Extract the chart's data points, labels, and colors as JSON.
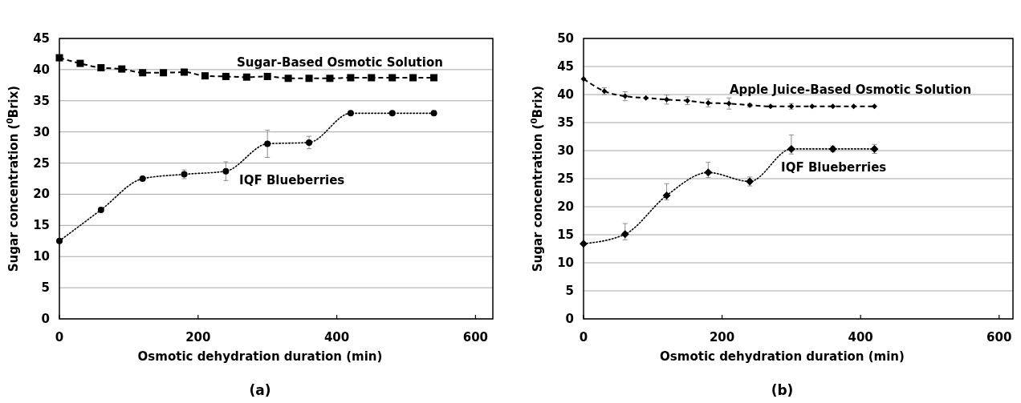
{
  "chart_data": [
    {
      "type": "line",
      "xlabel": "Osmotic dehydration duration (min)",
      "ylabel": "Sugar concentration ($^{0}$Brix)",
      "annotations": [
        "(a)"
      ],
      "xlim": [
        0,
        625
      ],
      "xticks": [
        0,
        200,
        400,
        600
      ],
      "ylim": [
        0,
        45
      ],
      "yticks": [
        0,
        5,
        10,
        15,
        20,
        25,
        30,
        35,
        40,
        45
      ],
      "grid": "y",
      "series": [
        {
          "name": "Sugar-Based Osmotic Solution",
          "color": "#000000",
          "marker": "square",
          "line_style": "dashed",
          "x": [
            0,
            30,
            60,
            90,
            120,
            150,
            180,
            210,
            240,
            270,
            300,
            330,
            360,
            390,
            420,
            450,
            480,
            510,
            540
          ],
          "values": [
            41.9,
            41.0,
            40.3,
            40.1,
            39.5,
            39.5,
            39.6,
            39.0,
            38.9,
            38.8,
            38.9,
            38.6,
            38.6,
            38.6,
            38.7,
            38.7,
            38.7,
            38.7,
            38.7
          ]
        },
        {
          "name": "IQF Blueberries",
          "color": "#000000",
          "marker": "circle",
          "line_style": "dotted",
          "x": [
            0,
            60,
            120,
            180,
            240,
            300,
            360,
            420,
            480,
            540
          ],
          "values": [
            12.5,
            17.5,
            22.5,
            23.2,
            23.7,
            28.1,
            28.3,
            33.0,
            33.0,
            33.0
          ],
          "errors": [
            null,
            null,
            null,
            0.7,
            1.5,
            2.2,
            1.0,
            null,
            null,
            null
          ]
        }
      ]
    },
    {
      "type": "line",
      "xlabel": "Osmotic dehydration duration (min)",
      "ylabel": "Sugar concentration ($^{0}$Brix)",
      "annotations": [
        "(b)"
      ],
      "xlim": [
        0,
        620
      ],
      "xticks": [
        0,
        200,
        400,
        600
      ],
      "ylim": [
        0,
        50
      ],
      "yticks": [
        0,
        5,
        10,
        15,
        20,
        25,
        30,
        35,
        40,
        45,
        50
      ],
      "grid": "y",
      "series": [
        {
          "name": "Apple Juice-Based Osmotic Solution",
          "color": "#000000",
          "marker": "diamond",
          "line_style": "dashed",
          "x": [
            0,
            30,
            60,
            90,
            120,
            150,
            180,
            210,
            240,
            270,
            300,
            330,
            360,
            390,
            420
          ],
          "values": [
            42.8,
            40.6,
            39.7,
            39.4,
            39.1,
            38.9,
            38.5,
            38.4,
            38.1,
            37.9,
            37.9,
            37.9,
            37.9,
            37.9,
            37.9
          ],
          "errors": [
            null,
            0.6,
            0.8,
            null,
            0.8,
            0.7,
            0.7,
            1.0,
            0.3,
            null,
            0.5,
            null,
            null,
            null,
            null
          ]
        },
        {
          "name": "IQF Blueberries",
          "color": "#000000",
          "marker": "diamond",
          "line_style": "dotted",
          "x": [
            0,
            60,
            120,
            180,
            240,
            300,
            360,
            420
          ],
          "values": [
            13.4,
            15.1,
            22.0,
            26.1,
            24.5,
            30.3,
            30.3,
            30.3
          ],
          "errors": [
            null,
            [
              14.1,
              17.0
            ],
            [
              21.2,
              24.1
            ],
            [
              25.2,
              27.9
            ],
            0.8,
            [
              29.4,
              32.8
            ],
            0.5,
            0.8
          ]
        }
      ]
    }
  ]
}
